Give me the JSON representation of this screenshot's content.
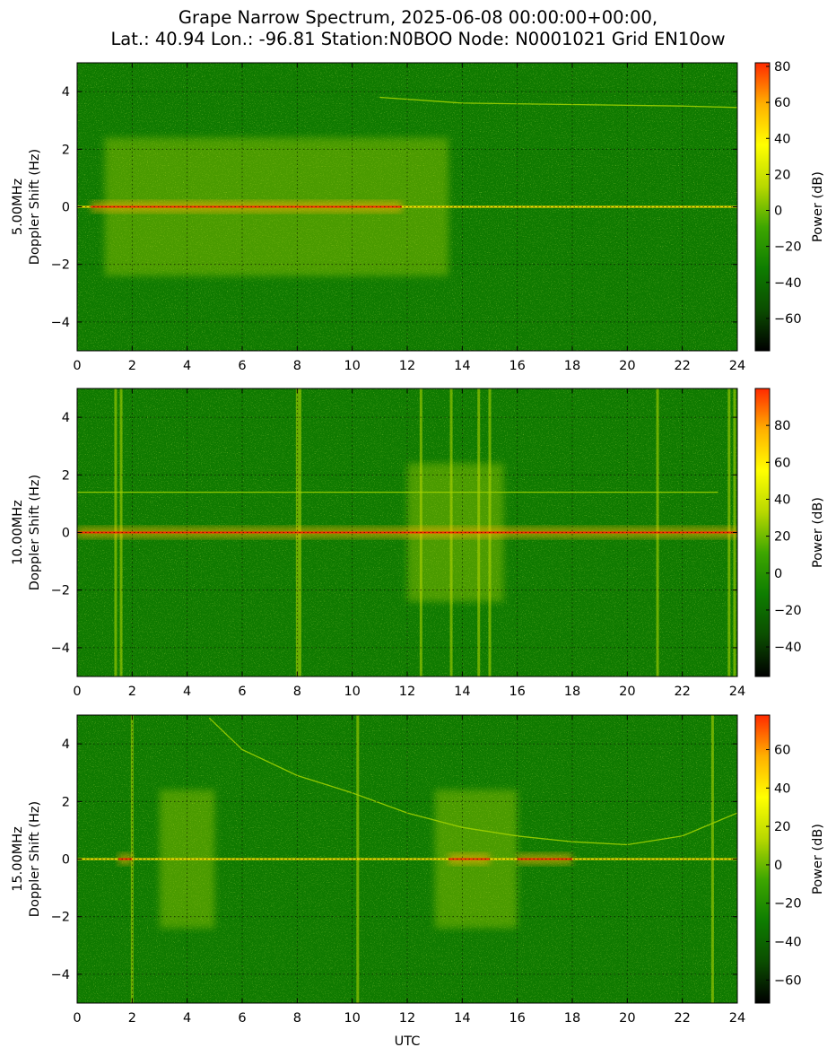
{
  "title_line1": "Grape Narrow Spectrum, 2025-06-08 00:00:00+00:00,",
  "title_line2": "Lat.: 40.94 Lon.: -96.81 Station:N0BOO Node: N0001021 Grid EN10ow",
  "colors": {
    "spectrum_base": "#0f7a00",
    "colormap": [
      "#000000",
      "#0b4d00",
      "#0e7d00",
      "#3ea600",
      "#b8d800",
      "#ffff00",
      "#ffb000",
      "#ff2a00"
    ]
  },
  "chart_data": [
    {
      "type": "heatmap",
      "title": "",
      "xlabel": "",
      "ylabel": "5.00MHz\nDoppler Shift (Hz)",
      "xlim": [
        0,
        24
      ],
      "ylim": [
        -5,
        5
      ],
      "xticks": [
        0,
        2,
        4,
        6,
        8,
        10,
        12,
        14,
        16,
        18,
        20,
        22,
        24
      ],
      "yticks": [
        -4,
        -2,
        0,
        2,
        4
      ],
      "grid": true,
      "colorbar": {
        "label": "Power (dB)",
        "range": [
          -78,
          82
        ],
        "ticks": [
          80,
          60,
          40,
          20,
          0,
          -20,
          -40,
          -60
        ]
      },
      "features": {
        "carrier_hz": 0,
        "strong_carrier_spans": [
          [
            0.5,
            11.8
          ]
        ],
        "broad_spread_spans": [
          [
            1.0,
            13.5
          ]
        ],
        "vertical_bands": [],
        "curves": [
          {
            "x": [
              11,
              14,
              18,
              22,
              24
            ],
            "y": [
              3.8,
              3.6,
              3.55,
              3.5,
              3.45
            ]
          }
        ]
      }
    },
    {
      "type": "heatmap",
      "title": "",
      "xlabel": "",
      "ylabel": "10.00MHz\nDoppler Shift (Hz)",
      "xlim": [
        0,
        24
      ],
      "ylim": [
        -5,
        5
      ],
      "xticks": [
        0,
        2,
        4,
        6,
        8,
        10,
        12,
        14,
        16,
        18,
        20,
        22,
        24
      ],
      "yticks": [
        -4,
        -2,
        0,
        2,
        4
      ],
      "grid": true,
      "colorbar": {
        "label": "Power (dB)",
        "range": [
          -56,
          100
        ],
        "ticks": [
          80,
          60,
          40,
          20,
          0,
          -20,
          -40
        ]
      },
      "features": {
        "carrier_hz": 0,
        "strong_carrier_spans": [
          [
            0,
            24
          ]
        ],
        "broad_spread_spans": [
          [
            12.0,
            15.5
          ]
        ],
        "vertical_bands": [
          1.4,
          1.6,
          8.0,
          8.1,
          12.5,
          13.6,
          14.6,
          15.0,
          21.1,
          23.7,
          23.9
        ],
        "curves": [
          {
            "x": [
              0,
              23.3
            ],
            "y": [
              1.4,
              1.4
            ]
          }
        ]
      }
    },
    {
      "type": "heatmap",
      "title": "",
      "xlabel": "UTC",
      "ylabel": "15.00MHz\nDoppler Shift (Hz)",
      "xlim": [
        0,
        24
      ],
      "ylim": [
        -5,
        5
      ],
      "xticks": [
        0,
        2,
        4,
        6,
        8,
        10,
        12,
        14,
        16,
        18,
        20,
        22,
        24
      ],
      "yticks": [
        -4,
        -2,
        0,
        2,
        4
      ],
      "grid": true,
      "colorbar": {
        "label": "Power (dB)",
        "range": [
          -72,
          78
        ],
        "ticks": [
          60,
          40,
          20,
          0,
          -20,
          -40,
          -60
        ]
      },
      "features": {
        "carrier_hz": 0,
        "strong_carrier_spans": [
          [
            1.5,
            2.0
          ],
          [
            13.5,
            15.0
          ],
          [
            16.0,
            18.0
          ]
        ],
        "broad_spread_spans": [
          [
            3.0,
            5.0
          ],
          [
            13.0,
            16.0
          ]
        ],
        "vertical_bands": [
          2.0,
          10.2,
          23.1
        ],
        "curves": [
          {
            "x": [
              4.8,
              6,
              8,
              10,
              12,
              14,
              16,
              18,
              20,
              22,
              24
            ],
            "y": [
              4.9,
              3.8,
              2.9,
              2.3,
              1.6,
              1.1,
              0.8,
              0.6,
              0.5,
              0.8,
              1.6
            ]
          }
        ]
      }
    }
  ]
}
